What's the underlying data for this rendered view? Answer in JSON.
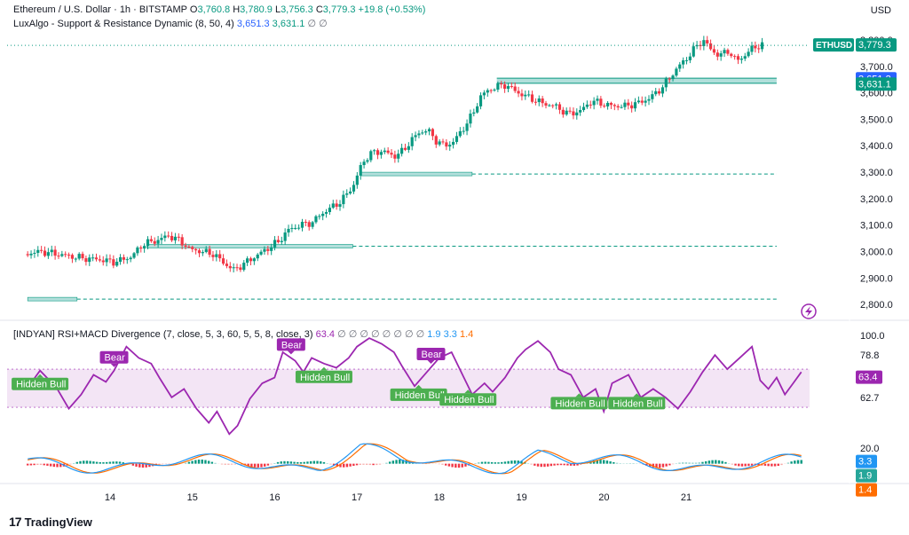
{
  "header": {
    "symbol_line": "Ethereum / U.S. Dollar · 1h · BITSTAMP",
    "o_label": "O",
    "o_value": "3,760.8",
    "h_label": "H",
    "h_value": "3,780.9",
    "l_label": "L",
    "l_value": "3,756.3",
    "c_label": "C",
    "c_value": "3,779.3",
    "change": "+19.8 (+0.53%)",
    "indicator_name": "LuxAlgo - Support & Resistance Dynamic (8, 50, 4)",
    "indicator_v1": "3,651.3",
    "indicator_v2": "3,631.1",
    "indicator_tail": "∅ ∅",
    "currency": "USD"
  },
  "rsi_header": {
    "name": "[INDYAN] RSI+MACD Divergence (7, close, 5, 3, 60, 5, 5, 8, close, 3)",
    "v1": "63.4",
    "empties": "∅ ∅ ∅ ∅ ∅ ∅ ∅ ∅",
    "v2": "1.9",
    "v3": "3.3",
    "v4": "1.4"
  },
  "brand": {
    "name": "TradingView",
    "logo": "17"
  },
  "colors": {
    "up": "#089981",
    "down": "#f23645",
    "rsi": "#9c27b0",
    "band": "#f3e5f5",
    "macd": "#2196f3",
    "signal": "#ff6d00",
    "bull_label": "#4caf50",
    "bear_label": "#9c27b0",
    "sr_fill": "#b2dfdb"
  },
  "chart_data": [
    {
      "type": "candlestick",
      "title": "Ethereum / U.S. Dollar · 1h · BITSTAMP",
      "ylabel": "USD",
      "ylim": [
        2750,
        3830
      ],
      "x_ticks": [
        "14",
        "15",
        "16",
        "17",
        "18",
        "19",
        "20",
        "21"
      ],
      "y_ticks": [
        "2,800.0",
        "2,900.0",
        "3,000.0",
        "3,100.0",
        "3,200.0",
        "3,300.0",
        "3,400.0",
        "3,500.0",
        "3,600.0",
        "3,700.0",
        "3,800.0"
      ],
      "price_path": [
        [
          13.0,
          2990
        ],
        [
          13.2,
          3000
        ],
        [
          13.5,
          2985
        ],
        [
          13.7,
          2975
        ],
        [
          13.9,
          2970
        ],
        [
          14.1,
          2960
        ],
        [
          14.3,
          2980
        ],
        [
          14.45,
          3030
        ],
        [
          14.6,
          3040
        ],
        [
          14.75,
          3060
        ],
        [
          14.9,
          3040
        ],
        [
          15.0,
          3010
        ],
        [
          15.15,
          3000
        ],
        [
          15.3,
          2990
        ],
        [
          15.45,
          2950
        ],
        [
          15.55,
          2930
        ],
        [
          15.7,
          2960
        ],
        [
          15.85,
          2990
        ],
        [
          15.95,
          3010
        ],
        [
          16.1,
          3040
        ],
        [
          16.2,
          3080
        ],
        [
          16.35,
          3100
        ],
        [
          16.5,
          3110
        ],
        [
          16.6,
          3140
        ],
        [
          16.7,
          3160
        ],
        [
          16.85,
          3190
        ],
        [
          17.0,
          3250
        ],
        [
          17.1,
          3330
        ],
        [
          17.2,
          3370
        ],
        [
          17.35,
          3380
        ],
        [
          17.5,
          3360
        ],
        [
          17.6,
          3380
        ],
        [
          17.7,
          3420
        ],
        [
          17.8,
          3450
        ],
        [
          17.9,
          3460
        ],
        [
          18.0,
          3420
        ],
        [
          18.1,
          3400
        ],
        [
          18.2,
          3410
        ],
        [
          18.3,
          3450
        ],
        [
          18.45,
          3520
        ],
        [
          18.55,
          3590
        ],
        [
          18.7,
          3620
        ],
        [
          18.85,
          3630
        ],
        [
          19.0,
          3600
        ],
        [
          19.15,
          3580
        ],
        [
          19.3,
          3560
        ],
        [
          19.45,
          3550
        ],
        [
          19.6,
          3520
        ],
        [
          19.75,
          3530
        ],
        [
          19.9,
          3570
        ],
        [
          20.0,
          3560
        ],
        [
          20.15,
          3550
        ],
        [
          20.3,
          3550
        ],
        [
          20.45,
          3560
        ],
        [
          20.6,
          3580
        ],
        [
          20.75,
          3620
        ],
        [
          20.85,
          3660
        ],
        [
          20.95,
          3700
        ],
        [
          21.05,
          3730
        ],
        [
          21.15,
          3770
        ],
        [
          21.25,
          3800
        ],
        [
          21.35,
          3760
        ],
        [
          21.45,
          3740
        ],
        [
          21.55,
          3760
        ],
        [
          21.65,
          3720
        ],
        [
          21.75,
          3740
        ],
        [
          21.85,
          3770
        ],
        [
          21.95,
          3780
        ]
      ],
      "support_resistance": [
        {
          "y": 3655,
          "y_low": 3636,
          "start": 18.7,
          "end": 22.1
        },
        {
          "y": 3293,
          "start": 17.05,
          "end": 18.4,
          "extend_dashed_to": 22.1
        },
        {
          "y": 3020,
          "start": 14.45,
          "end": 16.95,
          "extend_dashed_to": 22.1
        },
        {
          "y": 2820,
          "start": 13.0,
          "end": 13.6,
          "extend_dashed_to": 22.1
        }
      ],
      "last_price": {
        "label": "ETHUSD",
        "value": "3,779.3",
        "y": 3779.3
      },
      "price_tags": [
        {
          "value": "3,651.3",
          "y": 3651.3,
          "color": "#2962ff"
        },
        {
          "value": "3,631.1",
          "y": 3631.1,
          "color": "#089981"
        }
      ]
    },
    {
      "type": "line",
      "title": "[INDYAN] RSI+MACD Divergence",
      "ylim": [
        5,
        105
      ],
      "y_ticks": [
        "100.0",
        "78.8",
        "62.7",
        "20.0"
      ],
      "band": [
        49,
        76
      ],
      "rsi": [
        [
          13.0,
          63
        ],
        [
          13.15,
          75
        ],
        [
          13.35,
          63
        ],
        [
          13.5,
          48
        ],
        [
          13.65,
          58
        ],
        [
          13.8,
          72
        ],
        [
          13.95,
          67
        ],
        [
          14.05,
          75
        ],
        [
          14.2,
          92
        ],
        [
          14.35,
          84
        ],
        [
          14.5,
          80
        ],
        [
          14.6,
          70
        ],
        [
          14.75,
          56
        ],
        [
          14.9,
          62
        ],
        [
          15.05,
          48
        ],
        [
          15.2,
          38
        ],
        [
          15.3,
          46
        ],
        [
          15.45,
          30
        ],
        [
          15.55,
          36
        ],
        [
          15.7,
          55
        ],
        [
          15.85,
          66
        ],
        [
          16.0,
          70
        ],
        [
          16.1,
          88
        ],
        [
          16.25,
          82
        ],
        [
          16.35,
          74
        ],
        [
          16.45,
          84
        ],
        [
          16.6,
          80
        ],
        [
          16.75,
          77
        ],
        [
          16.9,
          84
        ],
        [
          17.0,
          92
        ],
        [
          17.15,
          98
        ],
        [
          17.3,
          94
        ],
        [
          17.45,
          88
        ],
        [
          17.55,
          78
        ],
        [
          17.7,
          64
        ],
        [
          17.85,
          74
        ],
        [
          18.0,
          84
        ],
        [
          18.15,
          88
        ],
        [
          18.3,
          70
        ],
        [
          18.4,
          58
        ],
        [
          18.55,
          66
        ],
        [
          18.65,
          60
        ],
        [
          18.8,
          70
        ],
        [
          18.95,
          84
        ],
        [
          19.05,
          90
        ],
        [
          19.2,
          96
        ],
        [
          19.35,
          88
        ],
        [
          19.45,
          76
        ],
        [
          19.6,
          72
        ],
        [
          19.75,
          56
        ],
        [
          19.9,
          62
        ],
        [
          20.0,
          46
        ],
        [
          20.1,
          66
        ],
        [
          20.3,
          72
        ],
        [
          20.45,
          56
        ],
        [
          20.6,
          62
        ],
        [
          20.75,
          56
        ],
        [
          20.9,
          48
        ],
        [
          21.05,
          60
        ],
        [
          21.2,
          74
        ],
        [
          21.35,
          86
        ],
        [
          21.5,
          76
        ],
        [
          21.65,
          84
        ],
        [
          21.8,
          92
        ],
        [
          21.9,
          68
        ],
        [
          22.0,
          62
        ],
        [
          22.1,
          70
        ],
        [
          22.2,
          58
        ],
        [
          22.3,
          66
        ],
        [
          22.4,
          74
        ]
      ],
      "labels": [
        {
          "text": "Bear",
          "kind": "bear",
          "x": 14.05
        },
        {
          "text": "Bear",
          "kind": "bear",
          "x": 16.2
        },
        {
          "text": "Bear",
          "kind": "bear",
          "x": 17.9
        },
        {
          "text": "Hidden Bull",
          "kind": "bull",
          "x": 13.15
        },
        {
          "text": "Hidden Bull",
          "kind": "bull",
          "x": 16.6
        },
        {
          "text": "Hidden Bull",
          "kind": "bull",
          "x": 17.75
        },
        {
          "text": "Hidden Bull",
          "kind": "bull",
          "x": 18.35
        },
        {
          "text": "Hidden Bull",
          "kind": "bull",
          "x": 19.7
        },
        {
          "text": "Hidden Bull",
          "kind": "bull",
          "x": 20.4
        }
      ]
    }
  ]
}
